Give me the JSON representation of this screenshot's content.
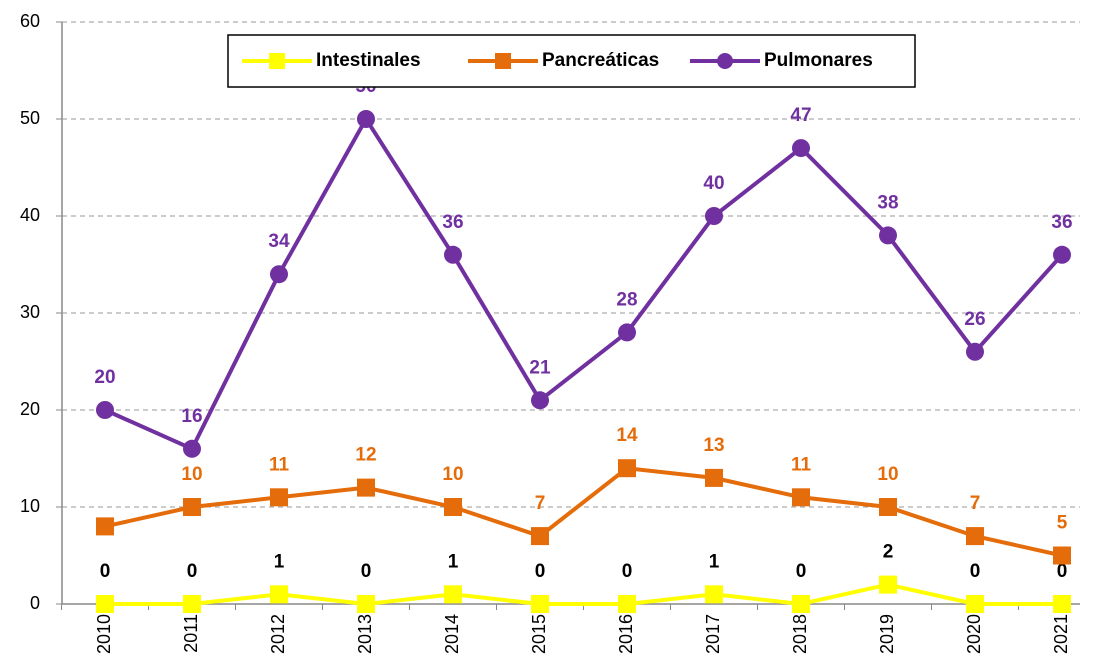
{
  "chart_data": {
    "type": "line",
    "categories": [
      "2010",
      "2011",
      "2012",
      "2013",
      "2014",
      "2015",
      "2016",
      "2017",
      "2018",
      "2019",
      "2020",
      "2021"
    ],
    "series": [
      {
        "name": "Intestinales",
        "color": "#ffff00",
        "marker": "square",
        "label_color": "#000000",
        "values": [
          0,
          0,
          1,
          0,
          1,
          0,
          0,
          1,
          0,
          2,
          0,
          0
        ]
      },
      {
        "name": "Pancreáticas",
        "color": "#e46c0a",
        "marker": "square",
        "label_color": "#e46c0a",
        "values": [
          8,
          10,
          11,
          12,
          10,
          7,
          14,
          13,
          11,
          10,
          7,
          5
        ],
        "value_labels": [
          null,
          "10",
          "11",
          "12",
          "10",
          "7",
          "14",
          "13",
          "11",
          "10",
          "7",
          "5"
        ]
      },
      {
        "name": "Pulmonares",
        "color": "#7030a0",
        "marker": "circle",
        "label_color": "#7030a0",
        "values": [
          20,
          16,
          34,
          50,
          36,
          21,
          28,
          40,
          47,
          38,
          26,
          36
        ]
      }
    ],
    "ylim": [
      0,
      60
    ],
    "yticks": [
      0,
      10,
      20,
      30,
      40,
      50,
      60
    ],
    "grid": true,
    "legend": "top"
  }
}
